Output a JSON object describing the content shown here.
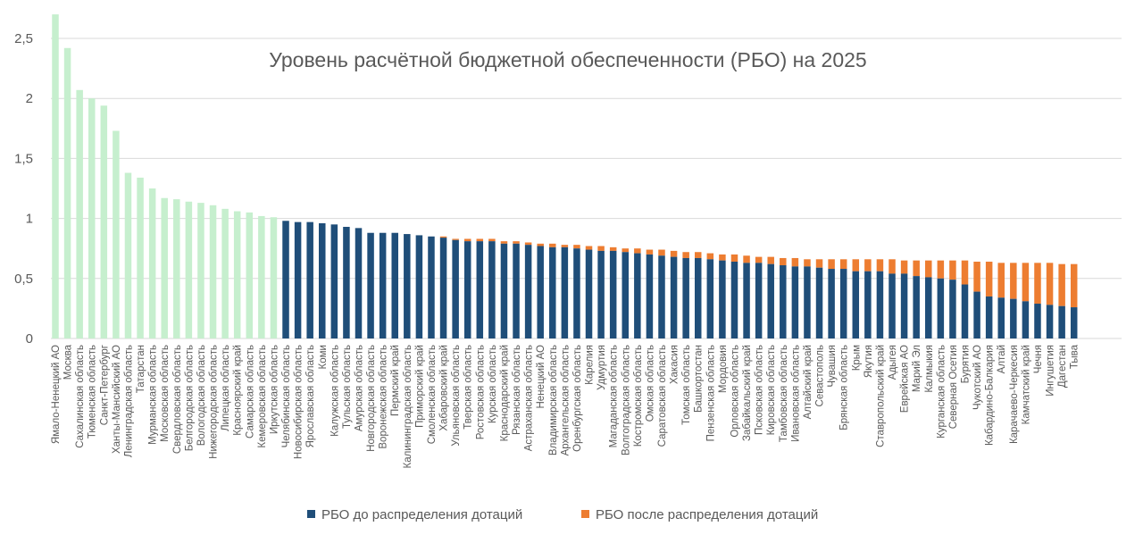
{
  "chart_data": {
    "type": "bar",
    "title": "Уровень расчётной бюджетной обеспеченности (РБО) на 2025",
    "xlabel": "",
    "ylabel": "",
    "ylim": [
      0,
      2.7
    ],
    "y_ticks": [
      "0",
      "0,5",
      "1",
      "1,5",
      "2",
      "2,5"
    ],
    "y_tick_values": [
      0,
      0.5,
      1,
      1.5,
      2,
      2.5
    ],
    "grid": true,
    "legend_position": "bottom",
    "colors": {
      "above": "#c6efce",
      "before": "#1f4e79",
      "after": "#ed7d31",
      "grid": "#d9d9d9",
      "text": "#595959"
    },
    "series": [
      {
        "name": "РБО до распределения дотаций",
        "color": "#1f4e79"
      },
      {
        "name": "РБО после распределения дотаций",
        "color": "#ed7d31"
      }
    ],
    "categories": [
      "Ямало-Ненецкий АО",
      "Москва",
      "Сахалинская область",
      "Тюменская область",
      "Санкт-Петербург",
      "Ханты-Мансийский АО",
      "Ленинградская область",
      "Татарстан",
      "Мурманская область",
      "Московская область",
      "Свердловская область",
      "Белгородская область",
      "Вологодская область",
      "Нижегородская область",
      "Липецкая область",
      "Красноярский край",
      "Самарская область",
      "Кемеровская область",
      "Иркутская область",
      "Челябинская область",
      "Новосибирская область",
      "Ярославская область",
      "Коми",
      "Калужская область",
      "Тульская область",
      "Амурская область",
      "Новгородская область",
      "Воронежская область",
      "Пермский край",
      "Калининградская область",
      "Приморский край",
      "Смоленская область",
      "Хабаровский край",
      "Ульяновская область",
      "Тверская область",
      "Ростовская область",
      "Курская область",
      "Краснодарский край",
      "Рязанская область",
      "Астраханская область",
      "Ненецкий АО",
      "Владимирская область",
      "Архангельская область",
      "Оренбургская область",
      "Карелия",
      "Удмуртия",
      "Магаданская область",
      "Волгоградская область",
      "Костромская область",
      "Омская область",
      "Саратовская область",
      "Хакасия",
      "Томская область",
      "Башкортостан",
      "Пензенская область",
      "Мордовия",
      "Орловская область",
      "Забайкальский край",
      "Псковская область",
      "Кировская область",
      "Тамбовская область",
      "Ивановская область",
      "Алтайский край",
      "Севастополь",
      "Чувашия",
      "Брянская область",
      "Крым",
      "Якутия",
      "Ставропольский край",
      "Адыгея",
      "Еврейская АО",
      "Марий Эл",
      "Калмыкия",
      "Курганская область",
      "Северная Осетия",
      "Бурятия",
      "Чукотский АО",
      "Кабардино-Балкария",
      "Алтай",
      "Карачаево-Черкесия",
      "Камчатский край",
      "Чечня",
      "Ингушетия",
      "Дагестан",
      "Тыва"
    ],
    "before": [
      2.7,
      2.42,
      2.07,
      2.0,
      1.94,
      1.73,
      1.38,
      1.34,
      1.25,
      1.17,
      1.16,
      1.14,
      1.13,
      1.11,
      1.08,
      1.06,
      1.05,
      1.02,
      1.01,
      0.98,
      0.97,
      0.97,
      0.96,
      0.95,
      0.93,
      0.92,
      0.88,
      0.88,
      0.88,
      0.87,
      0.86,
      0.85,
      0.84,
      0.82,
      0.81,
      0.81,
      0.81,
      0.79,
      0.79,
      0.78,
      0.77,
      0.76,
      0.76,
      0.75,
      0.74,
      0.73,
      0.73,
      0.72,
      0.71,
      0.7,
      0.69,
      0.68,
      0.67,
      0.67,
      0.66,
      0.65,
      0.64,
      0.63,
      0.63,
      0.62,
      0.61,
      0.6,
      0.6,
      0.59,
      0.58,
      0.58,
      0.56,
      0.56,
      0.56,
      0.54,
      0.54,
      0.52,
      0.51,
      0.5,
      0.49,
      0.45,
      0.39,
      0.35,
      0.34,
      0.33,
      0.31,
      0.29,
      0.28,
      0.27,
      0.26
    ],
    "after": [
      2.7,
      2.42,
      2.07,
      2.0,
      1.94,
      1.73,
      1.38,
      1.34,
      1.25,
      1.17,
      1.16,
      1.14,
      1.13,
      1.11,
      1.08,
      1.06,
      1.05,
      1.02,
      1.01,
      0.98,
      0.97,
      0.97,
      0.96,
      0.95,
      0.93,
      0.92,
      0.88,
      0.88,
      0.88,
      0.87,
      0.86,
      0.85,
      0.85,
      0.83,
      0.83,
      0.83,
      0.83,
      0.81,
      0.81,
      0.8,
      0.79,
      0.79,
      0.78,
      0.78,
      0.77,
      0.77,
      0.76,
      0.75,
      0.75,
      0.74,
      0.74,
      0.73,
      0.72,
      0.72,
      0.71,
      0.7,
      0.7,
      0.69,
      0.68,
      0.68,
      0.67,
      0.67,
      0.66,
      0.66,
      0.66,
      0.66,
      0.66,
      0.66,
      0.66,
      0.66,
      0.65,
      0.65,
      0.65,
      0.65,
      0.65,
      0.65,
      0.64,
      0.64,
      0.63,
      0.63,
      0.63,
      0.63,
      0.63,
      0.62,
      0.62
    ]
  }
}
